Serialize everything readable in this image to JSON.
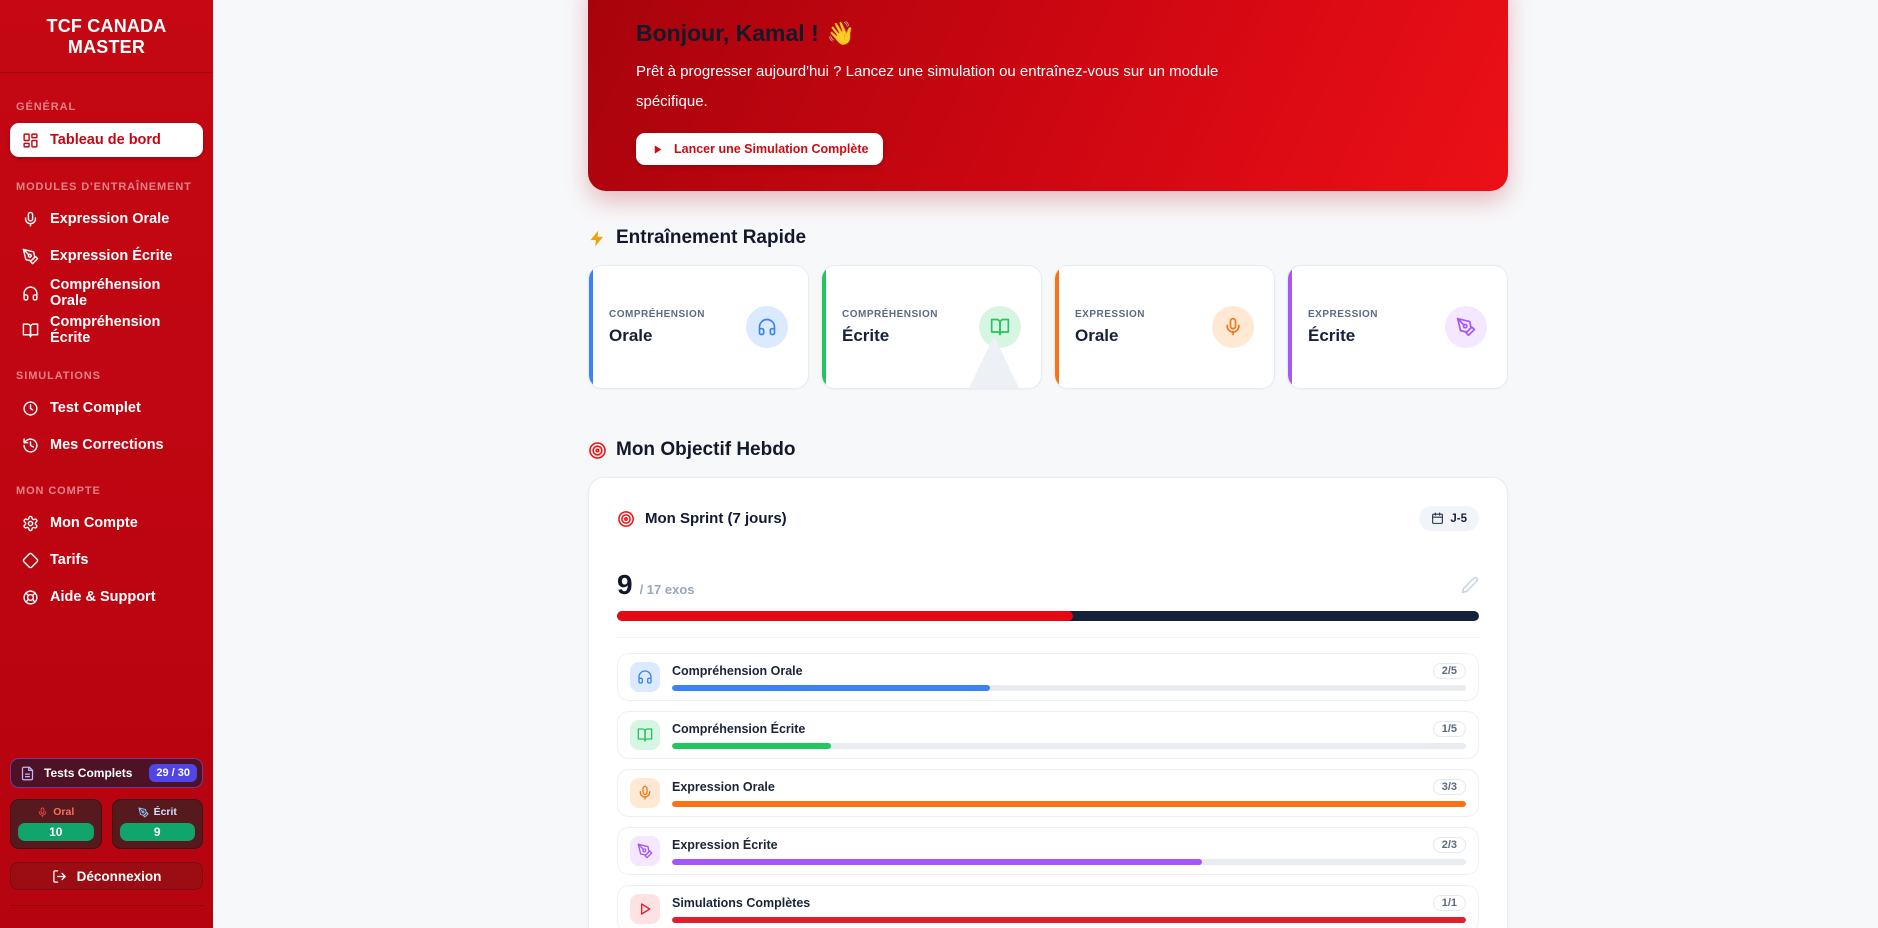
{
  "sidebar": {
    "brand": "TCF CANADA MASTER",
    "sections": [
      {
        "label": "GÉNÉRAL",
        "items": [
          {
            "label": "Tableau de bord",
            "icon": "dashboard-grid-icon",
            "active": true
          }
        ]
      },
      {
        "label": "MODULES D'ENTRAÎNEMENT",
        "items": [
          {
            "label": "Expression Orale",
            "icon": "microphone-icon"
          },
          {
            "label": "Expression Écrite",
            "icon": "pen-nib-icon"
          },
          {
            "label": "Compréhension Orale",
            "icon": "headphones-icon"
          },
          {
            "label": "Compréhension Écrite",
            "icon": "open-book-icon"
          }
        ]
      },
      {
        "label": "SIMULATIONS",
        "items": [
          {
            "label": "Test Complet",
            "icon": "clock-icon"
          },
          {
            "label": "Mes Corrections",
            "icon": "history-icon"
          }
        ]
      },
      {
        "label": "MON COMPTE",
        "items": [
          {
            "label": "Mon Compte",
            "icon": "gear-icon"
          },
          {
            "label": "Tarifs",
            "icon": "diamond-icon"
          },
          {
            "label": "Aide & Support",
            "icon": "lifebuoy-icon"
          }
        ]
      }
    ],
    "stats": {
      "tests": {
        "label": "Tests Complets",
        "badge": "29 / 30",
        "icon": "document-icon",
        "badge_color": "#4f46e5"
      },
      "oral": {
        "label": "Oral",
        "value": "10",
        "icon": "microphone-icon",
        "value_bg": "#0fa56b"
      },
      "ecrit": {
        "label": "Écrit",
        "value": "9",
        "icon": "pen-nib-icon",
        "value_bg": "#0fa56b"
      }
    },
    "logout_label": "Déconnexion",
    "bg_color": "#c00711"
  },
  "hero": {
    "title": "Bonjour, Kamal !",
    "emoji": "👋",
    "subtitle": "Prêt à progresser aujourd'hui ? Lancez une simulation ou entraînez-vous sur un module spécifique.",
    "cta_label": "Lancer une Simulation Complète",
    "accent_color": "#d20a10"
  },
  "quick_training": {
    "title": "Entraînement Rapide",
    "icon": "lightning-bolt-icon",
    "cards": [
      {
        "category": "COMPRÉHENSION",
        "title": "Orale",
        "icon": "headphones-icon",
        "color": "#3b82f6"
      },
      {
        "category": "COMPRÉHENSION",
        "title": "Écrite",
        "icon": "open-book-icon",
        "color": "#22c55e"
      },
      {
        "category": "EXPRESSION",
        "title": "Orale",
        "icon": "microphone-icon",
        "color": "#f97316"
      },
      {
        "category": "EXPRESSION",
        "title": "Écrite",
        "icon": "pen-nib-icon",
        "color": "#a855f7"
      }
    ]
  },
  "weekly_goal": {
    "title": "Mon Objectif Hebdo",
    "icon": "target-icon",
    "sprint_title": "Mon Sprint (7 jours)",
    "days_left": "J-5",
    "completed": "9",
    "total_label": "/ 17 exos",
    "progress_pct": 52.9,
    "progress_color": "#e50914",
    "track_color": "#16213a",
    "modules": [
      {
        "label": "Compréhension Orale",
        "fraction": "2/5",
        "pct": 40,
        "icon": "headphones-icon",
        "color": "#3b82f6"
      },
      {
        "label": "Compréhension Écrite",
        "fraction": "1/5",
        "pct": 20,
        "icon": "open-book-icon",
        "color": "#22c55e"
      },
      {
        "label": "Expression Orale",
        "fraction": "3/3",
        "pct": 100,
        "icon": "microphone-icon",
        "color": "#f97316"
      },
      {
        "label": "Expression Écrite",
        "fraction": "2/3",
        "pct": 66.7,
        "icon": "pen-nib-icon",
        "color": "#a855f7"
      },
      {
        "label": "Simulations Complètes",
        "fraction": "1/1",
        "pct": 100,
        "icon": "play-icon",
        "color": "#e11d2e"
      }
    ]
  }
}
